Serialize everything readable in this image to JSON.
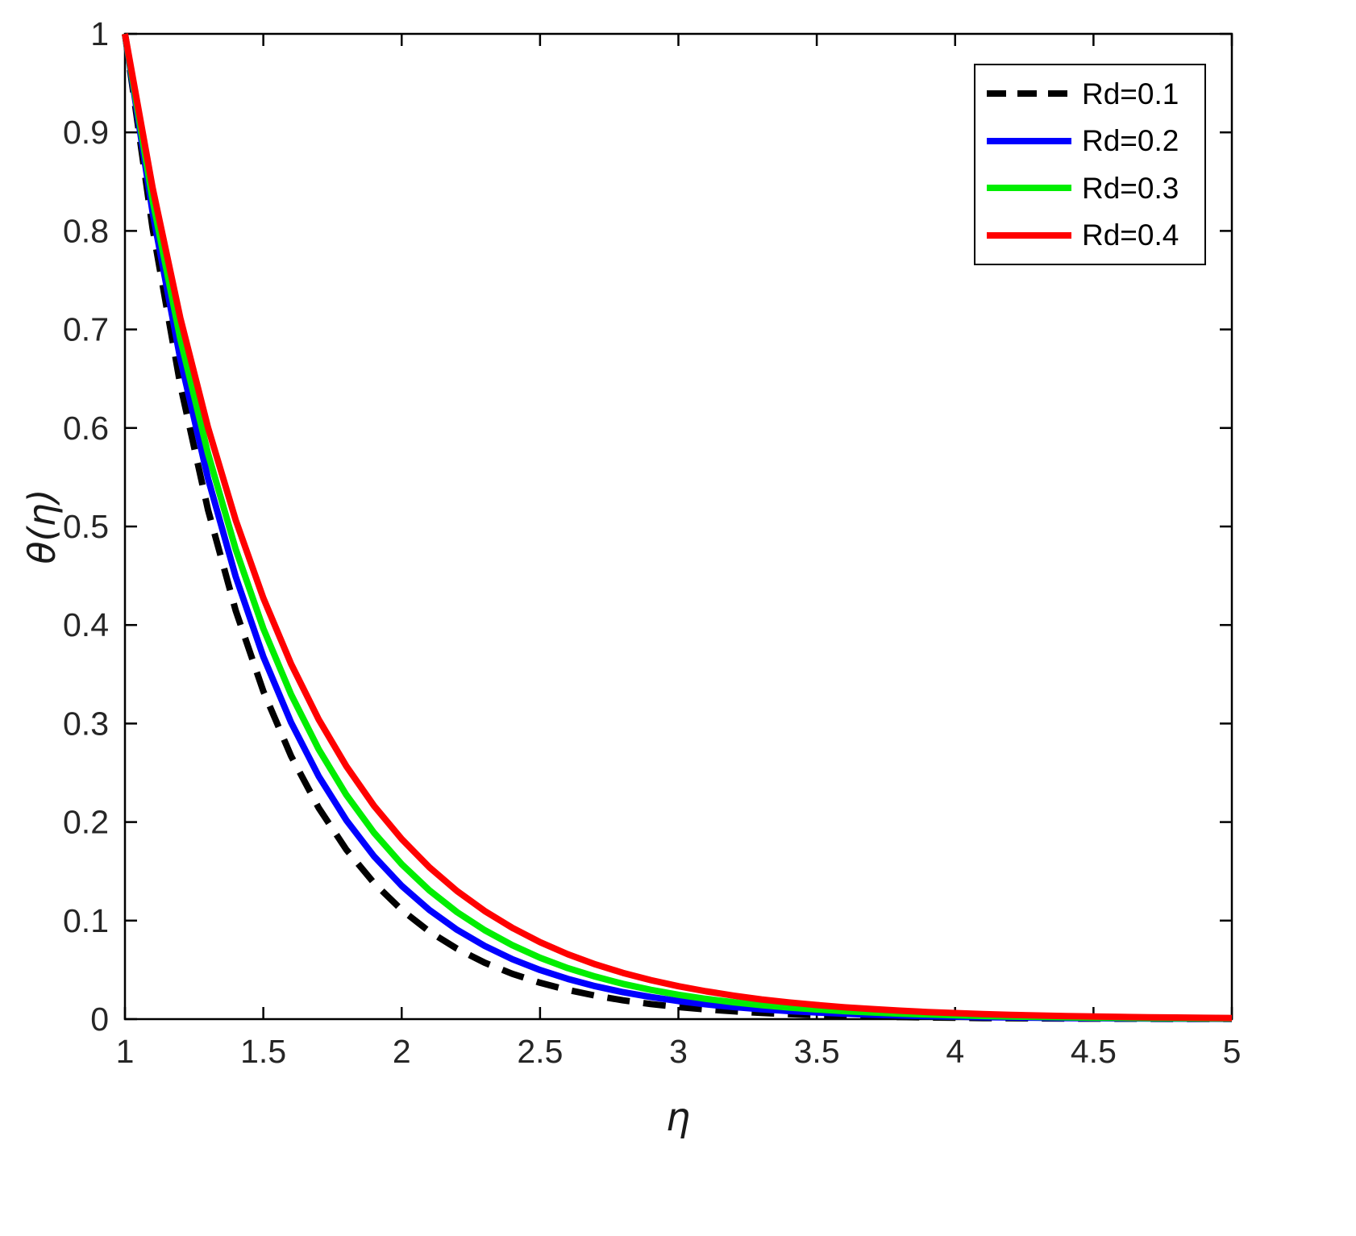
{
  "figure": {
    "background": "#ffffff",
    "axis_color": "#000000",
    "tick_label_color": "#262626"
  },
  "chart_data": {
    "type": "line",
    "title": "",
    "xlabel": "η",
    "ylabel": "θ(η)",
    "xlim": [
      1,
      5
    ],
    "ylim": [
      0,
      1
    ],
    "grid": false,
    "legend_position": "top-right",
    "x_ticks": [
      1,
      1.5,
      2,
      2.5,
      3,
      3.5,
      4,
      4.5,
      5
    ],
    "x_tick_labels": [
      "1",
      "1.5",
      "2",
      "2.5",
      "3",
      "3.5",
      "4",
      "4.5",
      "5"
    ],
    "y_ticks": [
      0,
      0.1,
      0.2,
      0.3,
      0.4,
      0.5,
      0.6,
      0.7,
      0.8,
      0.9,
      1
    ],
    "y_tick_labels": [
      "0",
      "0.1",
      "0.2",
      "0.3",
      "0.4",
      "0.5",
      "0.6",
      "0.7",
      "0.8",
      "0.9",
      "1"
    ],
    "x": [
      1,
      1.1,
      1.2,
      1.3,
      1.4,
      1.5,
      1.6,
      1.7,
      1.8,
      1.9,
      2,
      2.1,
      2.2,
      2.3,
      2.4,
      2.5,
      2.6,
      2.7,
      2.8,
      2.9,
      3,
      3.1,
      3.2,
      3.3,
      3.4,
      3.5,
      3.6,
      3.7,
      3.8,
      3.9,
      4,
      4.1,
      4.2,
      4.3,
      4.4,
      4.5,
      4.6,
      4.7,
      4.8,
      4.9,
      5
    ],
    "series": [
      {
        "name": "Rd=0.1",
        "color": "#000000",
        "style": "dashed",
        "values": [
          1,
          0.8025,
          0.644,
          0.5169,
          0.4148,
          0.3329,
          0.2671,
          0.2144,
          0.172,
          0.1381,
          0.1108,
          0.0889,
          0.0714,
          0.0573,
          0.046,
          0.0369,
          0.0296,
          0.0238,
          0.0191,
          0.0153,
          0.0123,
          0.0099,
          0.0079,
          0.0063,
          0.0051,
          0.0041,
          0.0033,
          0.0026,
          0.0021,
          0.0017,
          0.0014,
          0.0011,
          0.0009,
          0.0007,
          0.0006,
          0.0005,
          0.0004,
          0.0003,
          0.0002,
          0.0002,
          0.0002
        ]
      },
      {
        "name": "Rd=0.2",
        "color": "#0000ff",
        "style": "solid",
        "values": [
          1,
          0.8187,
          0.6703,
          0.5488,
          0.4493,
          0.3679,
          0.3012,
          0.2466,
          0.2019,
          0.1653,
          0.1353,
          0.1108,
          0.0907,
          0.0743,
          0.0608,
          0.0498,
          0.0408,
          0.0334,
          0.0273,
          0.0224,
          0.0183,
          0.015,
          0.0123,
          0.0101,
          0.0082,
          0.0067,
          0.0055,
          0.0045,
          0.0037,
          0.003,
          0.0025,
          0.002,
          0.0017,
          0.0014,
          0.0011,
          0.0009,
          0.0007,
          0.0006,
          0.0005,
          0.0004,
          0.0003
        ]
      },
      {
        "name": "Rd=0.3",
        "color": "#00ee00",
        "style": "solid",
        "values": [
          1,
          0.8311,
          0.6907,
          0.5741,
          0.4771,
          0.3965,
          0.3296,
          0.2739,
          0.2276,
          0.1892,
          0.1572,
          0.1307,
          0.1086,
          0.0903,
          0.075,
          0.0623,
          0.0518,
          0.0431,
          0.0358,
          0.0297,
          0.0247,
          0.0205,
          0.0171,
          0.0142,
          0.0118,
          0.0098,
          0.0081,
          0.0068,
          0.0056,
          0.0047,
          0.0039,
          0.0032,
          0.0027,
          0.0022,
          0.0019,
          0.0015,
          0.0013,
          0.0011,
          0.0009,
          0.0007,
          0.0006
        ]
      },
      {
        "name": "Rd=0.4",
        "color": "#ff0000",
        "style": "solid",
        "values": [
          1,
          0.8437,
          0.7118,
          0.6005,
          0.5066,
          0.4274,
          0.3606,
          0.3042,
          0.2567,
          0.2165,
          0.1827,
          0.1541,
          0.13,
          0.1097,
          0.0926,
          0.0781,
          0.0659,
          0.0556,
          0.0469,
          0.0396,
          0.0334,
          0.0282,
          0.0238,
          0.02,
          0.0169,
          0.0143,
          0.012,
          0.0102,
          0.0086,
          0.0072,
          0.0061,
          0.0051,
          0.0043,
          0.0037,
          0.0031,
          0.0026,
          0.0022,
          0.0019,
          0.0016,
          0.0013,
          0.0011
        ]
      }
    ]
  }
}
